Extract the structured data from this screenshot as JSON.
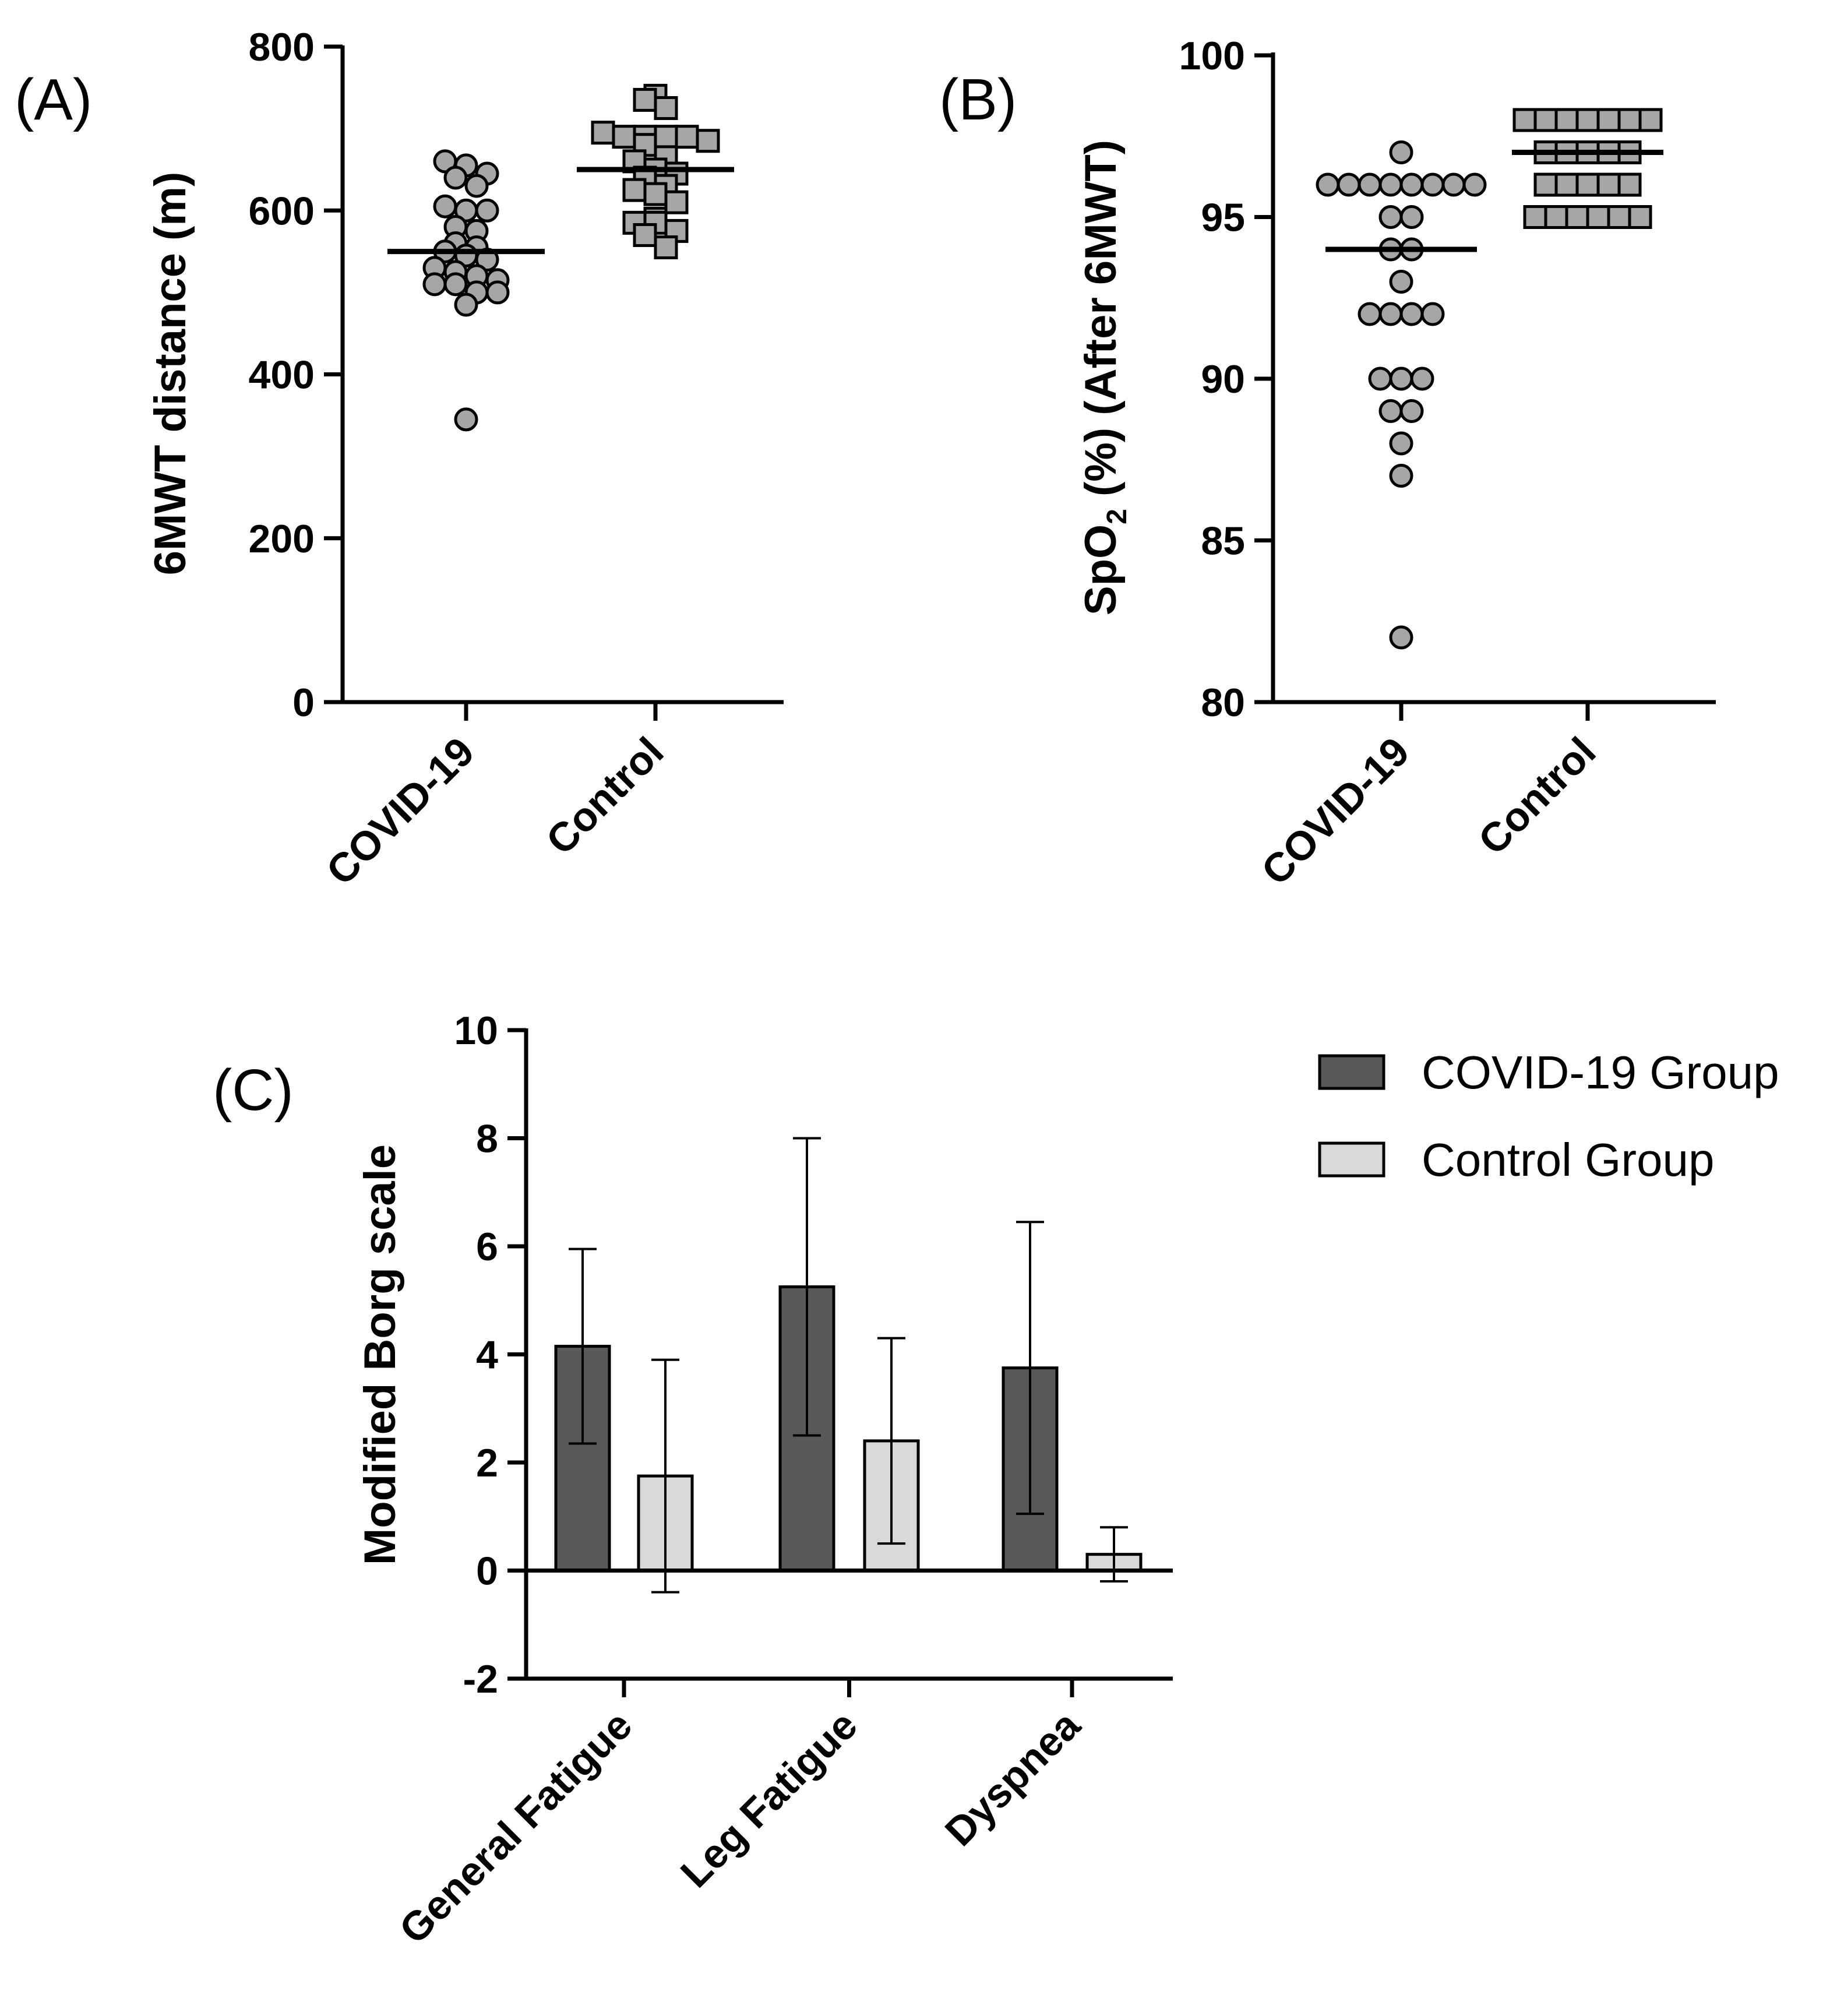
{
  "colors": {
    "point_fill": "#a6a6a6",
    "covid_bar": "#595959",
    "control_bar": "#d9d9d9",
    "ink": "#000000"
  },
  "chart_data": [
    {
      "panel": "(A)",
      "type": "scatter",
      "ylabel": "6MWT distance (m)",
      "categories": [
        "COVID-19",
        "Control"
      ],
      "ylim": [
        0,
        800
      ],
      "yticks": [
        0,
        200,
        400,
        600,
        800
      ],
      "ytick_labels": [
        "0",
        "200",
        "400",
        "600",
        "800"
      ],
      "means": [
        550,
        650
      ],
      "series": [
        {
          "name": "COVID-19",
          "marker": "circle",
          "values": [
            660,
            655,
            645,
            640,
            630,
            605,
            600,
            600,
            580,
            575,
            560,
            555,
            550,
            545,
            540,
            530,
            525,
            520,
            515,
            510,
            510,
            500,
            500,
            485,
            345
          ]
        },
        {
          "name": "Control",
          "marker": "square",
          "values": [
            740,
            735,
            725,
            695,
            690,
            690,
            690,
            690,
            685,
            680,
            665,
            660,
            650,
            645,
            640,
            630,
            625,
            620,
            610,
            590,
            585,
            585,
            575,
            570,
            555
          ]
        }
      ]
    },
    {
      "panel": "(B)",
      "type": "scatter",
      "ylabel_main": "SpO",
      "ylabel_sub": "2",
      "ylabel_rest": " (%) (After 6MWT)",
      "categories": [
        "COVID-19",
        "Control"
      ],
      "ylim": [
        80,
        100
      ],
      "yticks": [
        80,
        85,
        90,
        95,
        100
      ],
      "ytick_labels": [
        "80",
        "85",
        "90",
        "95",
        "100"
      ],
      "means": [
        94,
        97
      ],
      "series": [
        {
          "name": "COVID-19",
          "marker": "circle",
          "values": [
            97,
            96,
            96,
            96,
            96,
            96,
            96,
            96,
            96,
            95,
            95,
            94,
            94,
            93,
            92,
            92,
            92,
            92,
            90,
            90,
            90,
            89,
            89,
            88,
            87,
            82
          ]
        },
        {
          "name": "Control",
          "marker": "square",
          "values": [
            98,
            98,
            98,
            98,
            98,
            98,
            98,
            97,
            97,
            97,
            97,
            97,
            96,
            96,
            96,
            96,
            96,
            95,
            95,
            95,
            95,
            95,
            95
          ]
        }
      ]
    },
    {
      "panel": "(C)",
      "type": "bar",
      "ylabel": "Modified Borg scale",
      "categories": [
        "General Fatigue",
        "Leg Fatigue",
        "Dyspnea"
      ],
      "ylim": [
        -2,
        10
      ],
      "yticks": [
        -2,
        0,
        2,
        4,
        6,
        8,
        10
      ],
      "ytick_labels": [
        "-2",
        "0",
        "2",
        "4",
        "6",
        "8",
        "10"
      ],
      "legend_position": "top-right",
      "series": [
        {
          "name": "COVID-19 Group",
          "values": [
            4.15,
            5.25,
            3.75
          ],
          "errors": [
            1.8,
            2.75,
            2.7
          ]
        },
        {
          "name": "Control Group",
          "values": [
            1.75,
            2.4,
            0.3
          ],
          "errors": [
            2.15,
            1.9,
            0.5
          ]
        }
      ]
    }
  ]
}
